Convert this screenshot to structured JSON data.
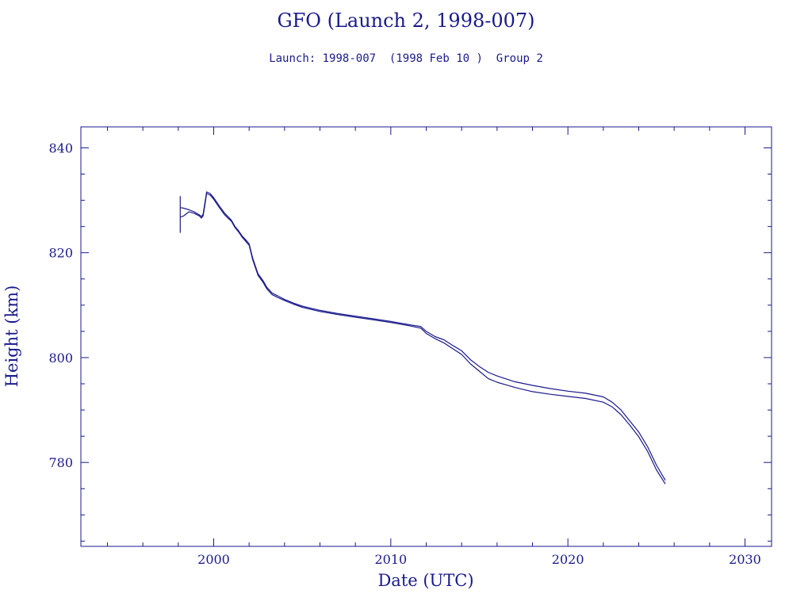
{
  "chart_data": {
    "type": "line",
    "title": "GFO (Launch 2, 1998-007)",
    "subtitle": "Launch: 1998-007  (1998 Feb 10 )  Group 2",
    "xlabel": "Date (UTC)",
    "ylabel": "Height (km)",
    "xlim": [
      1992.5,
      2031.5
    ],
    "ylim": [
      764,
      844
    ],
    "xticks": [
      2000,
      2010,
      2020,
      2030
    ],
    "yticks": [
      780,
      800,
      820,
      840
    ],
    "x_minor_step": 2,
    "y_minor_step": 5,
    "grid": false,
    "legend": "none",
    "launch_marker": {
      "x": 1998.11,
      "y_min": 823.8,
      "y_max": 830.8
    },
    "series": [
      {
        "line": "upper",
        "color": "#1a1a8c",
        "x": [
          1998.11,
          1998.3,
          1998.6,
          1998.9,
          1999.2,
          1999.3,
          1999.4,
          1999.5,
          1999.6,
          1999.8,
          2000.0,
          2000.3,
          2000.6,
          2000.8,
          2001.0,
          2001.2,
          2001.4,
          2001.6,
          2001.8,
          2002.0,
          2002.2,
          2002.5,
          2002.8,
          2003.0,
          2003.3,
          2003.6,
          2004.0,
          2004.5,
          2005.0,
          2006.0,
          2007.0,
          2008.0,
          2009.0,
          2010.0,
          2011.0,
          2011.7,
          2012.0,
          2012.5,
          2013.0,
          2013.5,
          2014.0,
          2014.5,
          2015.0,
          2015.5,
          2016.0,
          2017.0,
          2018.0,
          2019.0,
          2020.0,
          2021.0,
          2022.0,
          2022.5,
          2023.0,
          2023.5,
          2024.0,
          2024.5,
          2025.0,
          2025.5
        ],
        "values": [
          828.6,
          828.5,
          828.2,
          827.8,
          827.2,
          826.9,
          827.3,
          829.4,
          831.6,
          831.3,
          830.5,
          829.0,
          827.6,
          826.9,
          826.2,
          825.0,
          824.2,
          823.2,
          822.5,
          821.7,
          819.0,
          816.0,
          814.6,
          813.4,
          812.3,
          811.8,
          811.1,
          810.4,
          809.8,
          809.0,
          808.4,
          807.9,
          807.4,
          806.9,
          806.3,
          805.9,
          805.0,
          804.0,
          803.4,
          802.3,
          801.3,
          799.6,
          798.3,
          797.2,
          796.5,
          795.4,
          794.7,
          794.1,
          793.6,
          793.2,
          792.5,
          791.5,
          790.0,
          787.9,
          785.8,
          783.0,
          779.5,
          776.6
        ]
      },
      {
        "line": "lower",
        "color": "#1a1a8c",
        "x": [
          1998.11,
          1998.3,
          1998.6,
          1998.9,
          1999.2,
          1999.3,
          1999.4,
          1999.5,
          1999.6,
          1999.8,
          2000.0,
          2000.3,
          2000.6,
          2000.8,
          2001.0,
          2001.2,
          2001.4,
          2001.6,
          2001.8,
          2002.0,
          2002.2,
          2002.5,
          2002.8,
          2003.0,
          2003.3,
          2003.6,
          2004.0,
          2004.5,
          2005.0,
          2006.0,
          2007.0,
          2008.0,
          2009.0,
          2010.0,
          2011.0,
          2011.7,
          2012.0,
          2012.5,
          2013.0,
          2013.5,
          2014.0,
          2014.5,
          2015.0,
          2015.5,
          2016.0,
          2017.0,
          2018.0,
          2019.0,
          2020.0,
          2021.0,
          2022.0,
          2022.5,
          2023.0,
          2023.5,
          2024.0,
          2024.5,
          2025.0,
          2025.5
        ],
        "values": [
          826.8,
          827.0,
          827.8,
          827.5,
          827.0,
          826.6,
          827.0,
          829.0,
          831.3,
          831.0,
          830.2,
          828.7,
          827.3,
          826.6,
          826.0,
          824.8,
          824.0,
          823.0,
          822.2,
          821.4,
          818.7,
          815.7,
          814.3,
          813.1,
          812.0,
          811.5,
          810.9,
          810.2,
          809.6,
          808.8,
          808.2,
          807.7,
          807.2,
          806.7,
          806.1,
          805.6,
          804.6,
          803.6,
          802.8,
          801.7,
          800.6,
          798.8,
          797.4,
          796.0,
          795.3,
          794.3,
          793.5,
          793.0,
          792.6,
          792.2,
          791.5,
          790.6,
          789.1,
          787.1,
          784.9,
          782.1,
          778.6,
          775.9
        ]
      }
    ]
  }
}
